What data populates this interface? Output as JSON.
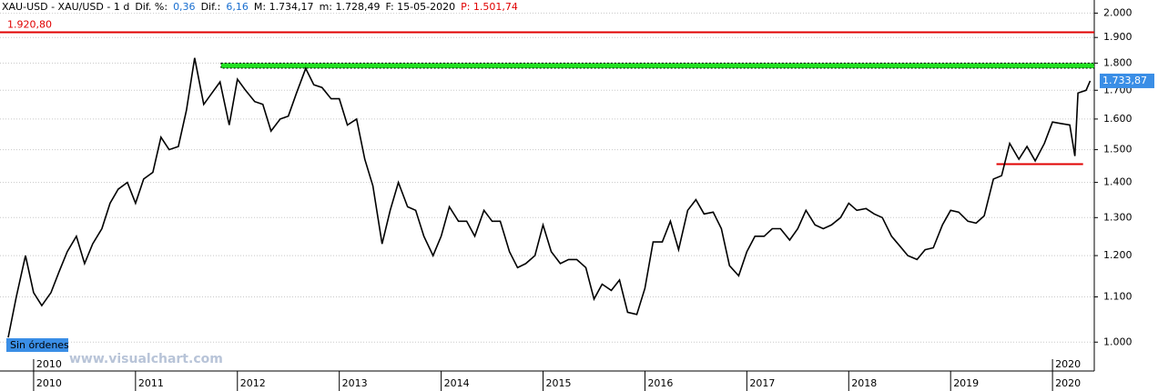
{
  "header": [
    {
      "text": "XAU-USD - XAU/USD - 1 d",
      "color": "#000000"
    },
    {
      "text": "Dif. %:",
      "color": "#000000"
    },
    {
      "text": "0,36",
      "color": "#1a6fd0"
    },
    {
      "text": "Dif.:",
      "color": "#000000"
    },
    {
      "text": "6,16",
      "color": "#1a6fd0"
    },
    {
      "text": "M: 1.734,17",
      "color": "#000000"
    },
    {
      "text": "m: 1.728,49",
      "color": "#000000"
    },
    {
      "text": "F: 15-05-2020",
      "color": "#000000"
    },
    {
      "text": "P: 1.501,74",
      "color": "#e00000"
    }
  ],
  "chart_data": {
    "type": "line",
    "log_y": true,
    "grid": true,
    "x": [
      2009.75,
      2009.83,
      2009.92,
      2010.0,
      2010.08,
      2010.17,
      2010.25,
      2010.33,
      2010.42,
      2010.5,
      2010.58,
      2010.67,
      2010.75,
      2010.83,
      2010.92,
      2011.0,
      2011.08,
      2011.17,
      2011.25,
      2011.33,
      2011.42,
      2011.5,
      2011.58,
      2011.67,
      2011.75,
      2011.83,
      2011.92,
      2012.0,
      2012.08,
      2012.17,
      2012.25,
      2012.33,
      2012.42,
      2012.5,
      2012.58,
      2012.67,
      2012.75,
      2012.83,
      2012.92,
      2013.0,
      2013.08,
      2013.17,
      2013.25,
      2013.33,
      2013.42,
      2013.5,
      2013.58,
      2013.67,
      2013.75,
      2013.83,
      2013.92,
      2014.0,
      2014.08,
      2014.17,
      2014.25,
      2014.33,
      2014.42,
      2014.5,
      2014.58,
      2014.67,
      2014.75,
      2014.83,
      2014.92,
      2015.0,
      2015.08,
      2015.17,
      2015.25,
      2015.33,
      2015.42,
      2015.5,
      2015.58,
      2015.67,
      2015.75,
      2015.83,
      2015.92,
      2016.0,
      2016.08,
      2016.17,
      2016.25,
      2016.33,
      2016.42,
      2016.5,
      2016.58,
      2016.67,
      2016.75,
      2016.83,
      2016.92,
      2017.0,
      2017.08,
      2017.17,
      2017.25,
      2017.33,
      2017.42,
      2017.5,
      2017.58,
      2017.67,
      2017.75,
      2017.83,
      2017.92,
      2018.0,
      2018.08,
      2018.17,
      2018.25,
      2018.33,
      2018.42,
      2018.5,
      2018.58,
      2018.67,
      2018.75,
      2018.83,
      2018.92,
      2019.0,
      2019.08,
      2019.17,
      2019.25,
      2019.33,
      2019.42,
      2019.5,
      2019.58,
      2019.67,
      2019.75,
      2019.83,
      2019.92,
      2020.0,
      2020.08,
      2020.17,
      2020.22,
      2020.25,
      2020.33,
      2020.37
    ],
    "series": [
      {
        "name": "XAU-USD",
        "color": "#000000",
        "values": [
          1010,
          1100,
          1200,
          1110,
          1080,
          1110,
          1160,
          1210,
          1250,
          1180,
          1230,
          1270,
          1340,
          1380,
          1400,
          1340,
          1410,
          1430,
          1540,
          1500,
          1510,
          1630,
          1820,
          1650,
          1690,
          1730,
          1580,
          1740,
          1700,
          1660,
          1650,
          1560,
          1600,
          1610,
          1690,
          1780,
          1720,
          1710,
          1670,
          1670,
          1580,
          1600,
          1470,
          1390,
          1230,
          1320,
          1400,
          1330,
          1320,
          1250,
          1200,
          1250,
          1330,
          1290,
          1290,
          1250,
          1320,
          1290,
          1290,
          1210,
          1170,
          1180,
          1200,
          1280,
          1210,
          1180,
          1190,
          1190,
          1170,
          1095,
          1130,
          1115,
          1140,
          1065,
          1060,
          1120,
          1235,
          1235,
          1290,
          1215,
          1320,
          1350,
          1310,
          1315,
          1270,
          1175,
          1150,
          1210,
          1250,
          1250,
          1270,
          1270,
          1240,
          1270,
          1320,
          1280,
          1270,
          1280,
          1300,
          1340,
          1320,
          1325,
          1310,
          1300,
          1250,
          1225,
          1200,
          1190,
          1215,
          1220,
          1280,
          1320,
          1315,
          1290,
          1285,
          1305,
          1410,
          1420,
          1520,
          1470,
          1510,
          1465,
          1520,
          1590,
          1585,
          1580,
          1480,
          1690,
          1700,
          1734
        ]
      }
    ],
    "xlim": [
      2009.67,
      2020.41
    ],
    "xticks": [
      2010,
      2011,
      2012,
      2013,
      2014,
      2015,
      2016,
      2017,
      2018,
      2019,
      2020
    ],
    "ylim": [
      941,
      2017
    ],
    "yticks": [
      {
        "value": 1000,
        "label": "1.000"
      },
      {
        "value": 1100,
        "label": "1.100"
      },
      {
        "value": 1200,
        "label": "1.200"
      },
      {
        "value": 1300,
        "label": "1.300"
      },
      {
        "value": 1400,
        "label": "1.400"
      },
      {
        "value": 1500,
        "label": "1.500"
      },
      {
        "value": 1600,
        "label": "1.600"
      },
      {
        "value": 1700,
        "label": "1.700"
      },
      {
        "value": 1800,
        "label": "1.800"
      },
      {
        "value": 1900,
        "label": "1.900"
      },
      {
        "value": 2000,
        "label": "2.000"
      }
    ],
    "levels": [
      {
        "value": 1920.8,
        "label": "1.920,80",
        "color": "#e00000",
        "from": 2009.67,
        "to": 2020.41
      },
      {
        "value": 1455,
        "color": "#e00000",
        "from": 2019.45,
        "to": 2020.3
      }
    ],
    "zone": {
      "low": 1781,
      "high": 1800,
      "from": 2011.84,
      "to": 2020.41,
      "color": "#22e022"
    },
    "last_price": {
      "value": 1733.87,
      "label": "1.733,87"
    },
    "status": "Sin órdenes",
    "watermark": "www.visualchart.com"
  }
}
